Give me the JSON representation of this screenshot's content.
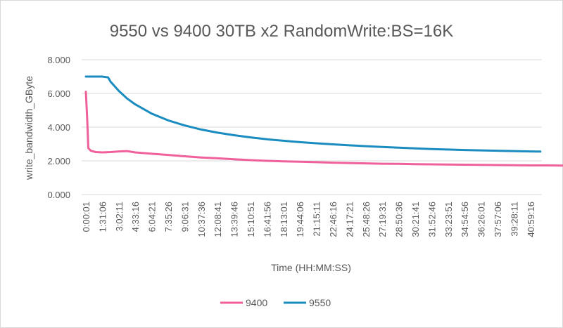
{
  "chart_data": {
    "type": "line",
    "title": "9550 vs 9400 30TB x2 RandomWrite:BS=16K",
    "xlabel": "Time (HH:MM:SS)",
    "ylabel": "write_bandwidth_GByte",
    "ylim": [
      0,
      8
    ],
    "yticks": [
      "0.000",
      "2.000",
      "4.000",
      "6.000",
      "8.000"
    ],
    "categories": [
      "0:00:01",
      "1:31:06",
      "3:02:11",
      "4:33:16",
      "6:04:21",
      "7:35:26",
      "9:06:31",
      "10:37:36",
      "12:08:41",
      "13:39:46",
      "15:10:51",
      "16:41:56",
      "18:13:01",
      "19:44:06",
      "21:15:11",
      "22:46:16",
      "24:17:21",
      "25:48:26",
      "27:19:31",
      "28:50:36",
      "30:21:41",
      "31:52:46",
      "33:23:51",
      "34:54:56",
      "36:26:01",
      "37:57:06",
      "39:28:11",
      "40:59:16"
    ],
    "grid": "horizontal",
    "legend_position": "bottom",
    "series": [
      {
        "name": "9400",
        "color": "#f0609b",
        "points": [
          [
            0,
            6.1
          ],
          [
            0.08,
            4.5
          ],
          [
            0.15,
            2.75
          ],
          [
            0.3,
            2.6
          ],
          [
            0.6,
            2.52
          ],
          [
            1,
            2.5
          ],
          [
            1.5,
            2.52
          ],
          [
            2,
            2.56
          ],
          [
            2.5,
            2.58
          ],
          [
            3,
            2.5
          ],
          [
            4,
            2.42
          ],
          [
            5,
            2.35
          ],
          [
            6,
            2.27
          ],
          [
            7,
            2.2
          ],
          [
            8,
            2.15
          ],
          [
            9,
            2.09
          ],
          [
            10,
            2.04
          ],
          [
            11,
            2.0
          ],
          [
            12,
            1.97
          ],
          [
            13,
            1.95
          ],
          [
            14,
            1.92
          ],
          [
            15,
            1.89
          ],
          [
            16,
            1.87
          ],
          [
            17,
            1.85
          ],
          [
            18,
            1.83
          ],
          [
            19,
            1.82
          ],
          [
            20,
            1.8
          ],
          [
            21,
            1.79
          ],
          [
            22,
            1.78
          ],
          [
            23,
            1.77
          ],
          [
            24,
            1.76
          ],
          [
            25,
            1.75
          ],
          [
            26,
            1.74
          ],
          [
            27,
            1.73
          ],
          [
            28,
            1.73
          ],
          [
            29,
            1.72
          ],
          [
            30,
            1.71
          ],
          [
            31,
            1.71
          ],
          [
            32,
            1.7
          ],
          [
            33,
            1.7
          ],
          [
            34,
            1.69
          ],
          [
            35,
            1.69
          ],
          [
            36,
            1.68
          ],
          [
            37,
            1.68
          ],
          [
            38,
            1.67
          ],
          [
            39,
            1.67
          ],
          [
            40,
            1.66
          ],
          [
            41,
            1.66
          ],
          [
            41.6,
            1.66
          ]
        ]
      },
      {
        "name": "9550",
        "color": "#1a8cc0",
        "points": [
          [
            0,
            7.0
          ],
          [
            0.5,
            7.0
          ],
          [
            1,
            7.0
          ],
          [
            1.35,
            6.95
          ],
          [
            1.5,
            6.7
          ],
          [
            2,
            6.15
          ],
          [
            2.5,
            5.7
          ],
          [
            3,
            5.35
          ],
          [
            4,
            4.8
          ],
          [
            5,
            4.4
          ],
          [
            6,
            4.1
          ],
          [
            7,
            3.86
          ],
          [
            8,
            3.67
          ],
          [
            9,
            3.52
          ],
          [
            10,
            3.39
          ],
          [
            11,
            3.28
          ],
          [
            12,
            3.19
          ],
          [
            13,
            3.11
          ],
          [
            14,
            3.04
          ],
          [
            15,
            2.98
          ],
          [
            16,
            2.92
          ],
          [
            17,
            2.87
          ],
          [
            18,
            2.82
          ],
          [
            19,
            2.78
          ],
          [
            20,
            2.74
          ],
          [
            21,
            2.7
          ],
          [
            22,
            2.67
          ],
          [
            23,
            2.64
          ],
          [
            24,
            2.62
          ],
          [
            25,
            2.6
          ],
          [
            26,
            2.58
          ],
          [
            27,
            2.56
          ],
          [
            27.6,
            2.55
          ]
        ]
      }
    ]
  }
}
